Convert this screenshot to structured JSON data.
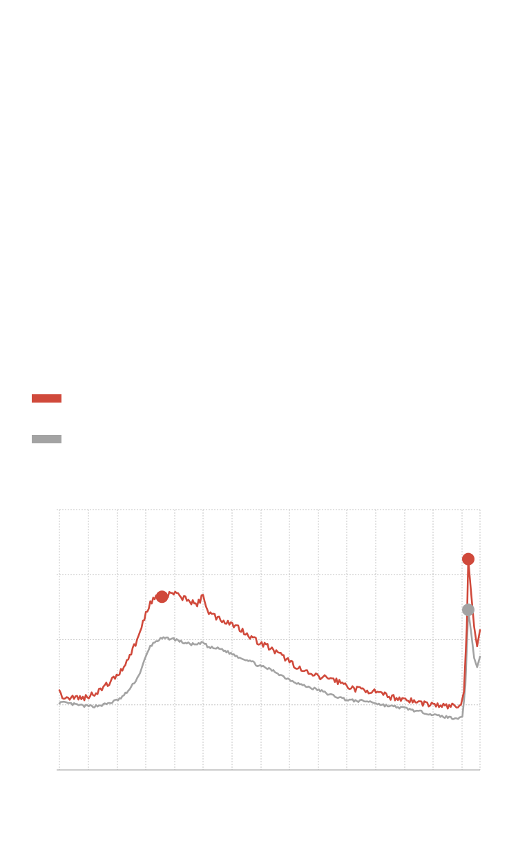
{
  "chart_data": {
    "type": "line",
    "title": "",
    "xlabel": "",
    "ylabel": "",
    "x_count": 288,
    "xlim": [
      0,
      287
    ],
    "ylim": [
      0,
      4
    ],
    "grid": true,
    "series": [
      {
        "name": "",
        "color": "#d0493b",
        "keypoints": [
          [
            0,
            1.18
          ],
          [
            4,
            1.1
          ],
          [
            10,
            1.12
          ],
          [
            16,
            1.1
          ],
          [
            20,
            1.14
          ],
          [
            24,
            1.18
          ],
          [
            30,
            1.26
          ],
          [
            36,
            1.38
          ],
          [
            42,
            1.52
          ],
          [
            48,
            1.76
          ],
          [
            54,
            2.04
          ],
          [
            58,
            2.34
          ],
          [
            62,
            2.58
          ],
          [
            66,
            2.66
          ],
          [
            70,
            2.6
          ],
          [
            74,
            2.68
          ],
          [
            78,
            2.72
          ],
          [
            82,
            2.66
          ],
          [
            86,
            2.64
          ],
          [
            90,
            2.58
          ],
          [
            94,
            2.54
          ],
          [
            98,
            2.68
          ],
          [
            102,
            2.42
          ],
          [
            106,
            2.36
          ],
          [
            112,
            2.3
          ],
          [
            118,
            2.24
          ],
          [
            124,
            2.16
          ],
          [
            130,
            2.06
          ],
          [
            136,
            1.96
          ],
          [
            142,
            1.9
          ],
          [
            148,
            1.8
          ],
          [
            154,
            1.72
          ],
          [
            160,
            1.62
          ],
          [
            166,
            1.52
          ],
          [
            172,
            1.46
          ],
          [
            178,
            1.42
          ],
          [
            184,
            1.42
          ],
          [
            190,
            1.36
          ],
          [
            196,
            1.3
          ],
          [
            202,
            1.24
          ],
          [
            208,
            1.24
          ],
          [
            214,
            1.2
          ],
          [
            220,
            1.16
          ],
          [
            226,
            1.12
          ],
          [
            232,
            1.1
          ],
          [
            238,
            1.08
          ],
          [
            244,
            1.04
          ],
          [
            250,
            1.02
          ],
          [
            256,
            1.0
          ],
          [
            262,
            0.98
          ],
          [
            268,
            0.98
          ],
          [
            272,
            0.98
          ],
          [
            274,
            1.0
          ],
          [
            276,
            1.2
          ],
          [
            278,
            2.2
          ],
          [
            279,
            3.24
          ],
          [
            281,
            2.7
          ],
          [
            283,
            2.2
          ],
          [
            285,
            1.9
          ],
          [
            287,
            2.15
          ]
        ],
        "markers": [
          [
            70,
            2.66
          ],
          [
            279,
            3.24
          ]
        ]
      },
      {
        "name": "",
        "color": "#a3a3a3",
        "keypoints": [
          [
            0,
            1.04
          ],
          [
            6,
            1.02
          ],
          [
            12,
            1.0
          ],
          [
            18,
            0.98
          ],
          [
            24,
            0.98
          ],
          [
            30,
            1.0
          ],
          [
            36,
            1.04
          ],
          [
            42,
            1.1
          ],
          [
            48,
            1.24
          ],
          [
            54,
            1.44
          ],
          [
            58,
            1.68
          ],
          [
            62,
            1.9
          ],
          [
            66,
            1.98
          ],
          [
            70,
            2.02
          ],
          [
            76,
            2.02
          ],
          [
            80,
            2.0
          ],
          [
            84,
            1.96
          ],
          [
            88,
            1.94
          ],
          [
            94,
            1.92
          ],
          [
            98,
            1.96
          ],
          [
            102,
            1.88
          ],
          [
            110,
            1.86
          ],
          [
            116,
            1.8
          ],
          [
            124,
            1.72
          ],
          [
            130,
            1.68
          ],
          [
            136,
            1.6
          ],
          [
            142,
            1.56
          ],
          [
            148,
            1.5
          ],
          [
            154,
            1.42
          ],
          [
            160,
            1.36
          ],
          [
            166,
            1.3
          ],
          [
            172,
            1.26
          ],
          [
            178,
            1.22
          ],
          [
            184,
            1.16
          ],
          [
            190,
            1.12
          ],
          [
            196,
            1.08
          ],
          [
            202,
            1.06
          ],
          [
            208,
            1.06
          ],
          [
            214,
            1.04
          ],
          [
            220,
            1.0
          ],
          [
            226,
            0.98
          ],
          [
            232,
            0.96
          ],
          [
            238,
            0.94
          ],
          [
            244,
            0.9
          ],
          [
            250,
            0.88
          ],
          [
            256,
            0.84
          ],
          [
            262,
            0.82
          ],
          [
            268,
            0.8
          ],
          [
            272,
            0.8
          ],
          [
            275,
            0.82
          ],
          [
            277,
            1.3
          ],
          [
            279,
            2.46
          ],
          [
            281,
            2.1
          ],
          [
            283,
            1.72
          ],
          [
            285,
            1.58
          ],
          [
            287,
            1.74
          ]
        ],
        "markers": [
          [
            279,
            2.46
          ]
        ]
      }
    ],
    "legend_position": "top-left"
  }
}
